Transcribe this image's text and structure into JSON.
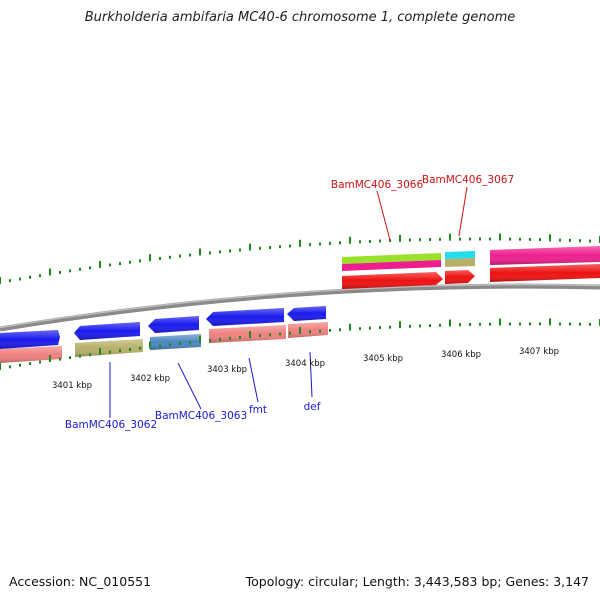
{
  "title": "Burkholderia ambifaria MC40-6 chromosome 1, complete genome",
  "footer": {
    "accession": "Accession: NC_010551",
    "summary": "Topology: circular; Length: 3,443,583 bp; Genes: 3,147"
  },
  "scale_labels": [
    "3401 kbp",
    "3402 kbp",
    "3403 kbp",
    "3404 kbp",
    "3405 kbp",
    "3406 kbp",
    "3407 kbp"
  ],
  "colors": {
    "backbone": "#8a8a8a",
    "tick": "#1e8a1e",
    "blue": "#1a1aee",
    "pink": "#f08080",
    "olive": "#b6b06a",
    "steel": "#4a86c0",
    "red": "#ee1111",
    "magenta": "#ee1e8e",
    "lime": "#9be12b",
    "cyan": "#22ddee",
    "khaki": "#b6b06a",
    "label_blue": "#1a1acc",
    "label_red": "#cc1111"
  },
  "gene_labels": [
    {
      "id": "BamMC406_3066",
      "color": "red"
    },
    {
      "id": "BamMC406_3067",
      "color": "red"
    },
    {
      "id": "BamMC406_3062",
      "color": "blue"
    },
    {
      "id": "BamMC406_3063",
      "color": "blue"
    },
    {
      "id": "fmt",
      "color": "blue"
    },
    {
      "id": "def",
      "color": "blue"
    }
  ]
}
